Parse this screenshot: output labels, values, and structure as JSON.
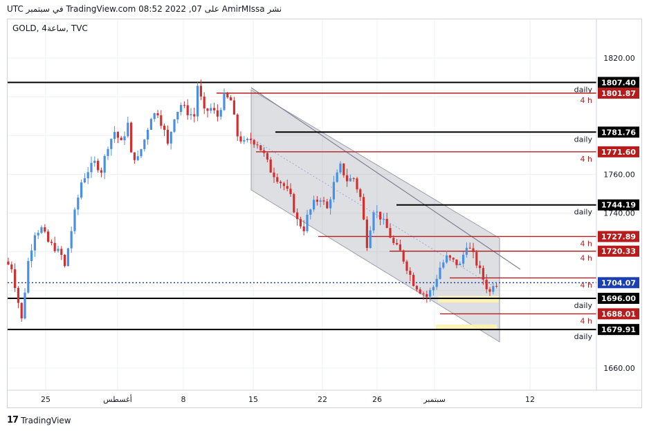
{
  "header": {
    "attribution": "نشر AmirMIssa على TradingView.com 08:52 2022 ,07 في سبتمبر UTC"
  },
  "symbol": "GOLD, 4ساعة, TVC",
  "footer": {
    "brand": "TradingView"
  },
  "colors": {
    "up": "#4a90e2",
    "down": "#d32f2f",
    "daily": "#000000",
    "h4": "#b71c1c",
    "current": "#1a3fb0",
    "channel": "#b5b8be"
  },
  "chart_data": {
    "type": "candlestick",
    "ylim": [
      1650,
      1830
    ],
    "y_ticks": [
      1660,
      1680,
      1700,
      1720,
      1740,
      1760,
      1780,
      1800,
      1820
    ],
    "x_tick_labels": [
      "25",
      "أغسطس",
      "8",
      "15",
      "22",
      "26",
      "سبتمبر",
      "12"
    ],
    "levels": [
      {
        "value": 1807.4,
        "label": "1807.40",
        "tag": "daily",
        "kind": "daily"
      },
      {
        "value": 1801.87,
        "label": "1801.87",
        "tag": "4 h",
        "kind": "h4"
      },
      {
        "value": 1781.76,
        "label": "1781.76",
        "tag": "daily",
        "kind": "daily"
      },
      {
        "value": 1771.6,
        "label": "1771.60",
        "tag": "4 h",
        "kind": "h4"
      },
      {
        "value": 1744.19,
        "label": "1744.19",
        "tag": "daily",
        "kind": "daily"
      },
      {
        "value": 1727.89,
        "label": "1727.89",
        "tag": "4 h",
        "kind": "h4"
      },
      {
        "value": 1720.33,
        "label": "1720.33",
        "tag": "4 h",
        "kind": "h4"
      },
      {
        "value": 1706.53,
        "label": "",
        "tag": "4 h",
        "kind": "h4"
      },
      {
        "value": 1696.0,
        "label": "1696.00",
        "tag": "daily",
        "kind": "daily"
      },
      {
        "value": 1688.01,
        "label": "1688.01",
        "tag": "4 h",
        "kind": "h4"
      },
      {
        "value": 1679.91,
        "label": "1679.91",
        "tag": "daily",
        "kind": "daily"
      }
    ],
    "current_price": {
      "value": 1704.07,
      "label": "1704.07"
    },
    "price_path": [
      [
        0,
        1715
      ],
      [
        2,
        1712
      ],
      [
        4,
        1694
      ],
      [
        5,
        1685
      ],
      [
        6,
        1700
      ],
      [
        7,
        1715
      ],
      [
        9,
        1730
      ],
      [
        11,
        1732
      ],
      [
        13,
        1725
      ],
      [
        15,
        1722
      ],
      [
        17,
        1718
      ],
      [
        18,
        1712
      ],
      [
        19,
        1722
      ],
      [
        21,
        1740
      ],
      [
        23,
        1756
      ],
      [
        25,
        1762
      ],
      [
        27,
        1766
      ],
      [
        29,
        1762
      ],
      [
        31,
        1775
      ],
      [
        33,
        1782
      ],
      [
        35,
        1776
      ],
      [
        37,
        1786
      ],
      [
        38,
        1770
      ],
      [
        40,
        1768
      ],
      [
        42,
        1778
      ],
      [
        44,
        1790
      ],
      [
        46,
        1792
      ],
      [
        48,
        1782
      ],
      [
        49,
        1775
      ],
      [
        51,
        1790
      ],
      [
        53,
        1796
      ],
      [
        55,
        1792
      ],
      [
        57,
        1790
      ],
      [
        58,
        1806
      ],
      [
        60,
        1792
      ],
      [
        62,
        1794
      ],
      [
        64,
        1790
      ],
      [
        66,
        1800
      ],
      [
        68,
        1798
      ],
      [
        70,
        1780
      ],
      [
        72,
        1776
      ],
      [
        74,
        1778
      ],
      [
        76,
        1776
      ],
      [
        78,
        1770
      ],
      [
        80,
        1762
      ],
      [
        82,
        1758
      ],
      [
        84,
        1754
      ],
      [
        86,
        1748
      ],
      [
        88,
        1736
      ],
      [
        90,
        1732
      ],
      [
        91,
        1738
      ],
      [
        93,
        1745
      ],
      [
        95,
        1748
      ],
      [
        97,
        1742
      ],
      [
        99,
        1755
      ],
      [
        101,
        1764
      ],
      [
        103,
        1757
      ],
      [
        105,
        1758
      ],
      [
        107,
        1748
      ],
      [
        108,
        1736
      ],
      [
        109,
        1724
      ],
      [
        111,
        1742
      ],
      [
        113,
        1738
      ],
      [
        115,
        1732
      ],
      [
        117,
        1724
      ],
      [
        119,
        1720
      ],
      [
        121,
        1712
      ],
      [
        123,
        1704
      ],
      [
        125,
        1700
      ],
      [
        127,
        1697
      ],
      [
        129,
        1702
      ],
      [
        131,
        1712
      ],
      [
        133,
        1717
      ],
      [
        135,
        1715
      ],
      [
        137,
        1713
      ],
      [
        139,
        1724
      ],
      [
        141,
        1718
      ],
      [
        143,
        1710
      ],
      [
        145,
        1702
      ],
      [
        146,
        1699
      ],
      [
        147,
        1704
      ]
    ]
  }
}
